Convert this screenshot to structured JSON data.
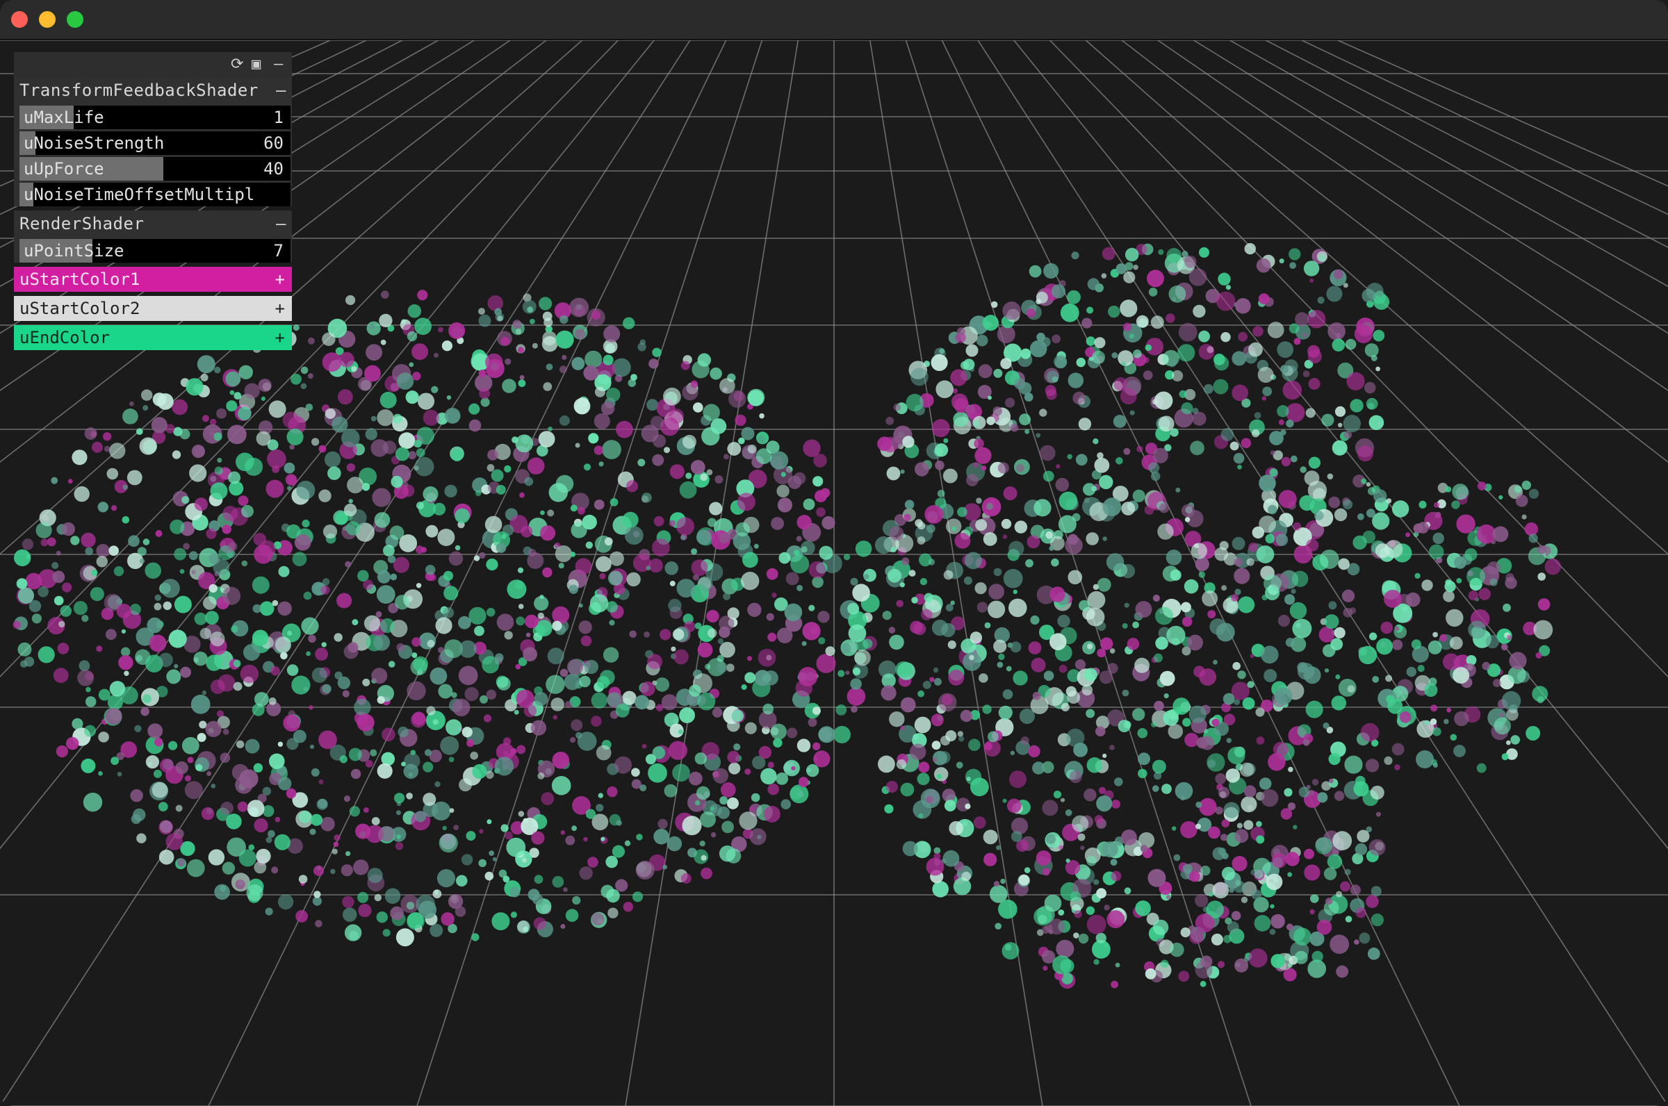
{
  "window": {
    "titlebar_color": "#2b2b2b"
  },
  "gui": {
    "header_icons": [
      "refresh-icon",
      "save-icon",
      "minimize-icon"
    ],
    "header_glyphs": {
      "refresh": "⟳",
      "save": "▣",
      "minimize": "–"
    },
    "folders": [
      {
        "name": "TransformFeedbackShader",
        "collapse_symbol": "–",
        "params": [
          {
            "label": "uMaxLife",
            "value": "1",
            "fill": 0.2
          },
          {
            "label": "uNoiseStrength",
            "value": "60",
            "fill": 0.06
          },
          {
            "label": "uUpForce",
            "value": "40",
            "fill": 0.53
          },
          {
            "label": "uNoiseTimeOffsetMultipl",
            "value": "",
            "fill": 0.05
          }
        ]
      },
      {
        "name": "RenderShader",
        "collapse_symbol": "–",
        "params": [
          {
            "label": "uPointSize",
            "value": "7",
            "fill": 0.27
          }
        ]
      }
    ],
    "colors": [
      {
        "label": "uStartColor1",
        "swatch": "#d21ea0",
        "text_color": "#fce4f3",
        "expand_symbol": "+"
      },
      {
        "label": "uStartColor2",
        "swatch": "#dcdcdc",
        "text_color": "#222222",
        "expand_symbol": "+"
      },
      {
        "label": "uEndColor",
        "swatch": "#19d68a",
        "text_color": "#062a1a",
        "expand_symbol": "+"
      }
    ]
  },
  "scene": {
    "background": "#1b1b1b",
    "grid_color": "#8a8a8a",
    "particle_colors": [
      "#6ee6b4",
      "#b0309a",
      "#c8ece0",
      "#5a9a8c",
      "#8c5a8c",
      "#3ecf8e"
    ]
  }
}
